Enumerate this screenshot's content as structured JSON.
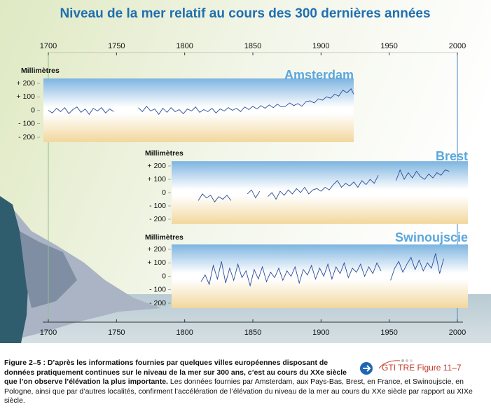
{
  "chart_data": {
    "type": "line",
    "title": "Niveau de la mer relatif au cours des 300 dernières années",
    "ylabel": "Millimètres",
    "xlim": [
      1700,
      2000
    ],
    "xticks": [
      1700,
      1750,
      1800,
      1850,
      1900,
      1950,
      2000
    ],
    "ylim": [
      -200,
      200
    ],
    "yticks": [
      {
        "value": 200,
        "label": "+ 200"
      },
      {
        "value": 100,
        "label": "+ 100"
      },
      0,
      {
        "value": -100,
        "label": "- 100"
      },
      {
        "value": -200,
        "label": "- 200"
      }
    ],
    "series": [
      {
        "name": "Amsterdam",
        "color": "#2b4c9b",
        "x": [
          1700,
          1703,
          1706,
          1709,
          1712,
          1715,
          1718,
          1721,
          1724,
          1727,
          1730,
          1733,
          1736,
          1739,
          1742,
          1745,
          1748,
          1757,
          1766,
          1769,
          1772,
          1775,
          1778,
          1781,
          1784,
          1787,
          1790,
          1793,
          1796,
          1799,
          1802,
          1805,
          1808,
          1811,
          1814,
          1817,
          1820,
          1823,
          1826,
          1829,
          1832,
          1835,
          1838,
          1841,
          1844,
          1847,
          1850,
          1853,
          1856,
          1859,
          1862,
          1865,
          1868,
          1871,
          1874,
          1877,
          1880,
          1883,
          1886,
          1889,
          1892,
          1895,
          1898,
          1901,
          1904,
          1907,
          1910,
          1913,
          1916,
          1919,
          1922,
          1924
        ],
        "values": [
          0,
          -20,
          15,
          -10,
          20,
          -25,
          5,
          25,
          -15,
          10,
          -30,
          15,
          -5,
          20,
          -20,
          10,
          -10,
          null,
          20,
          -10,
          30,
          -5,
          10,
          -30,
          15,
          -15,
          20,
          -10,
          5,
          -25,
          10,
          -5,
          25,
          -15,
          5,
          -10,
          15,
          -20,
          10,
          -5,
          20,
          0,
          15,
          -10,
          25,
          5,
          30,
          10,
          35,
          15,
          40,
          20,
          45,
          25,
          30,
          55,
          35,
          50,
          30,
          65,
          70,
          55,
          85,
          75,
          100,
          90,
          120,
          105,
          150,
          130,
          160,
          120
        ]
      },
      {
        "name": "Brest",
        "color": "#2b4c9b",
        "x": [
          1810,
          1813,
          1816,
          1819,
          1822,
          1825,
          1828,
          1831,
          1834,
          1840,
          1846,
          1849,
          1852,
          1855,
          1858,
          1861,
          1864,
          1867,
          1870,
          1873,
          1876,
          1879,
          1882,
          1885,
          1888,
          1891,
          1894,
          1897,
          1900,
          1903,
          1906,
          1909,
          1912,
          1915,
          1918,
          1921,
          1924,
          1927,
          1930,
          1933,
          1936,
          1939,
          1942,
          1948,
          1955,
          1958,
          1961,
          1964,
          1967,
          1970,
          1973,
          1976,
          1979,
          1982,
          1985,
          1988,
          1991,
          1994
        ],
        "values": [
          -60,
          -10,
          -40,
          -20,
          -70,
          -30,
          -50,
          -20,
          -60,
          null,
          -10,
          20,
          -40,
          10,
          null,
          -30,
          0,
          -50,
          10,
          -20,
          20,
          -10,
          30,
          0,
          40,
          -10,
          20,
          30,
          10,
          40,
          20,
          60,
          90,
          40,
          70,
          50,
          80,
          40,
          90,
          60,
          100,
          70,
          130,
          null,
          90,
          170,
          100,
          150,
          110,
          160,
          120,
          100,
          140,
          110,
          150,
          130,
          170,
          160
        ]
      },
      {
        "name": "Swinoujscie",
        "color": "#2b4c9b",
        "x": [
          1812,
          1815,
          1818,
          1821,
          1824,
          1827,
          1830,
          1833,
          1836,
          1839,
          1842,
          1845,
          1848,
          1851,
          1854,
          1857,
          1860,
          1863,
          1866,
          1869,
          1872,
          1875,
          1878,
          1881,
          1884,
          1887,
          1890,
          1893,
          1896,
          1899,
          1902,
          1905,
          1908,
          1911,
          1914,
          1917,
          1920,
          1923,
          1926,
          1929,
          1932,
          1935,
          1938,
          1941,
          1944,
          1947,
          1951,
          1954,
          1957,
          1960,
          1963,
          1966,
          1969,
          1972,
          1975,
          1978,
          1981,
          1984,
          1987,
          1990
        ],
        "values": [
          -40,
          10,
          -60,
          80,
          -20,
          110,
          -50,
          60,
          -30,
          90,
          -10,
          40,
          -70,
          50,
          -20,
          70,
          -40,
          30,
          -10,
          60,
          -30,
          40,
          0,
          70,
          -50,
          50,
          10,
          80,
          -20,
          60,
          0,
          90,
          -20,
          70,
          20,
          100,
          -10,
          60,
          30,
          90,
          0,
          70,
          20,
          100,
          40,
          null,
          -30,
          60,
          110,
          30,
          90,
          140,
          50,
          120,
          40,
          100,
          60,
          170,
          20,
          130
        ]
      }
    ]
  },
  "caption": {
    "bold": "Figure 2–5 : D’après les informations fournies par quelques villes européennes disposant de données pratiquement continues sur le niveau de la mer sur 300 ans, c’est au cours du XXe siècle que l’on observe l’élévation la plus importante.",
    "text": "Les données fournies par Amsterdam, aux Pays-Bas, Brest, en France, et Swinoujscie, en Pologne, ainsi que par d’autres localités, confirment l’accélération de l’élévation du niveau de la mer au cours du XXe siècle par rapport au XIXe siècle."
  },
  "link": "GTI TRE Figure 11–7"
}
